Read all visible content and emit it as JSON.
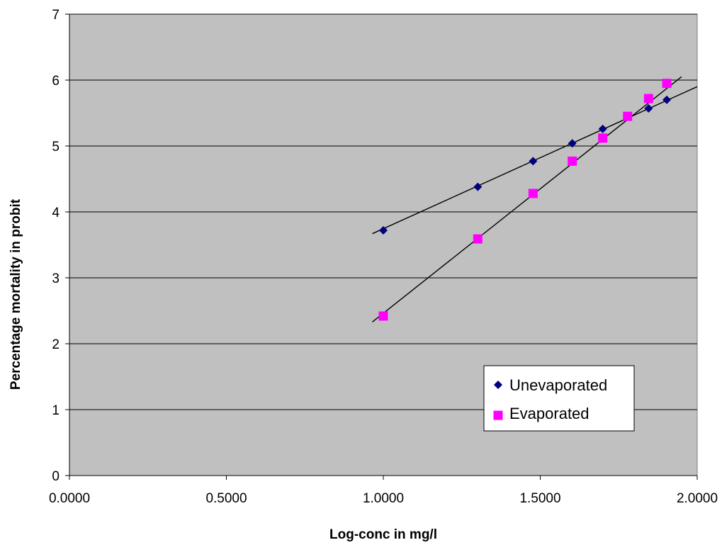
{
  "chart_data": {
    "type": "scatter",
    "title": "",
    "xlabel": "Log-conc in mg/l",
    "ylabel": "Percentage mortality in probit",
    "xlim": [
      0,
      2
    ],
    "ylim": [
      0,
      7
    ],
    "x_ticks": [
      "0.0000",
      "0.5000",
      "1.0000",
      "1.5000",
      "2.0000"
    ],
    "x_tick_values": [
      0,
      0.5,
      1,
      1.5,
      2
    ],
    "y_ticks": [
      "0",
      "1",
      "2",
      "3",
      "4",
      "5",
      "6",
      "7"
    ],
    "y_tick_values": [
      0,
      1,
      2,
      3,
      4,
      5,
      6,
      7
    ],
    "grid": "horizontal",
    "plot_background": "#c0c0c0",
    "legend_position": "bottom-right",
    "series": [
      {
        "name": "Unevaporated",
        "marker": "diamond",
        "color": "#000080",
        "x": [
          1.0,
          1.301,
          1.4771,
          1.6021,
          1.699,
          1.8451,
          1.9031
        ],
        "y": [
          3.72,
          4.38,
          4.77,
          5.04,
          5.26,
          5.57,
          5.7
        ],
        "trendline": {
          "x": [
            0.965,
            2.0
          ],
          "y": [
            3.67,
            5.9
          ]
        }
      },
      {
        "name": "Evaporated",
        "marker": "square",
        "color": "#ff00ff",
        "x": [
          1.0,
          1.301,
          1.4771,
          1.6021,
          1.699,
          1.7782,
          1.8451,
          1.9031
        ],
        "y": [
          2.42,
          3.59,
          4.28,
          4.77,
          5.12,
          5.45,
          5.72,
          5.95
        ],
        "trendline": {
          "x": [
            0.965,
            1.95
          ],
          "y": [
            2.33,
            6.05
          ]
        }
      }
    ]
  }
}
